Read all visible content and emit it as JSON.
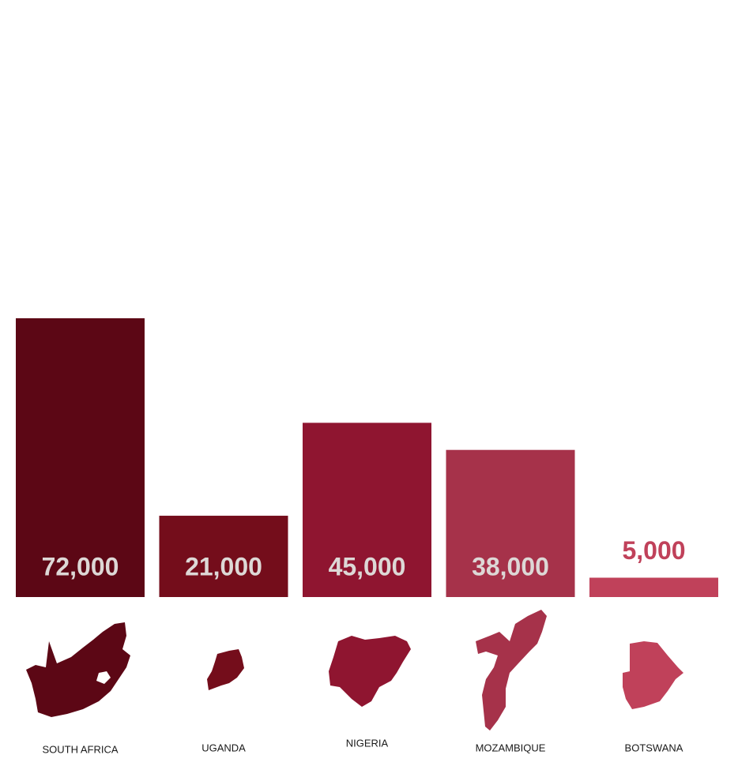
{
  "chart_data": {
    "type": "bar",
    "categories": [
      "SOUTH AFRICA",
      "UGANDA",
      "NIGERIA",
      "MOZAMBIQUE",
      "BOTSWANA"
    ],
    "values": [
      72000,
      21000,
      45000,
      38000,
      5000
    ],
    "value_labels": [
      "72,000",
      "21,000",
      "45,000",
      "38,000",
      "5,000"
    ],
    "colors": [
      "#5c0715",
      "#740d1b",
      "#8f1530",
      "#a6324a",
      "#c0415a"
    ]
  }
}
